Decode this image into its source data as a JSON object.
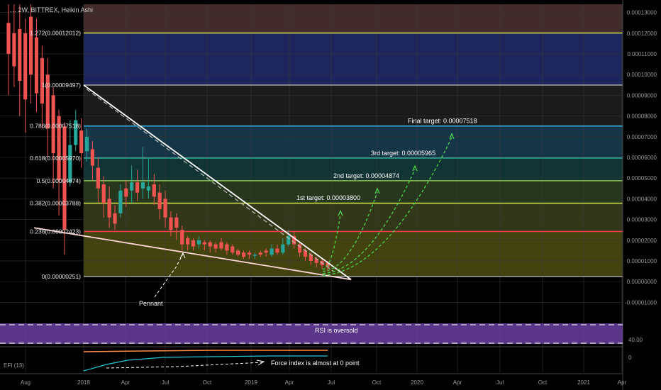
{
  "header": {
    "title": "… 2W, BITTREX, Heikin Ashi"
  },
  "price_axis": {
    "labels": [
      "0.00013000",
      "0.00012000",
      "0.00011000",
      "0.00010000",
      "0.00009000",
      "0.00008000",
      "0.00007000",
      "0.00006000",
      "0.00005000",
      "0.00004000",
      "0.00003000",
      "0.00002000",
      "0.00001000",
      "0.00000000",
      "-0.00001000"
    ]
  },
  "time_axis": {
    "labels": [
      "Aug",
      "2018",
      "Apr",
      "Jul",
      "Oct",
      "2019",
      "Apr",
      "Jul",
      "Oct",
      "2020",
      "Apr",
      "Jul",
      "Oct",
      "2021",
      "Apr"
    ]
  },
  "fib_levels": [
    {
      "label": "1.272(0.00012012)",
      "value": 0.00012012,
      "color": "#c6d94b"
    },
    {
      "label": "1(0.00009497)",
      "value": 9.497e-05,
      "color": "#9e9e9e"
    },
    {
      "label": "0.786(0.00007518)",
      "value": 7.518e-05,
      "color": "#3fa7d6"
    },
    {
      "label": "0.618(0.00005970)",
      "value": 5.97e-05,
      "color": "#39b7a3"
    },
    {
      "label": "0.5(0.00004874)",
      "value": 4.874e-05,
      "color": "#8bc34a"
    },
    {
      "label": "0.382(0.00003788)",
      "value": 3.788e-05,
      "color": "#c6d94b"
    },
    {
      "label": "0.236(0.00002423)",
      "value": 2.423e-05,
      "color": "#e0454a"
    },
    {
      "label": "0(0.00000251)",
      "value": 2.51e-06,
      "color": "#9e9e9e"
    }
  ],
  "targets": [
    {
      "label": "1st target: 0.00003800",
      "value": 3.8e-05
    },
    {
      "label": "2nd target: 0.00004874",
      "value": 4.874e-05
    },
    {
      "label": "3rd target: 0.00005965",
      "value": 5.965e-05
    },
    {
      "label": "Final target: 0.00007518",
      "value": 7.518e-05
    }
  ],
  "annotations": {
    "pennant": "Pennant",
    "rsi": "RSI is oversold",
    "efi": "Force index is almost at 0 point",
    "efi_label": "EFI (13)"
  },
  "rsi_axis": {
    "labels": [
      "40.00",
      "0"
    ]
  },
  "colors": {
    "up": "#26a69a",
    "down": "#ef5350",
    "rsi_band": "#6a3fa0",
    "trendline": "#ffffff",
    "target_arrow": "#4cd44c"
  },
  "chart_data": {
    "type": "candlestick",
    "series_kind": "Heikin Ashi",
    "interval": "2W",
    "exchange": "BITTREX",
    "ylim": [
      -1.4e-05,
      0.000134
    ],
    "candles": [
      {
        "o": 0.000125,
        "c": 0.00011,
        "h": 0.000134,
        "l": 9e-05
      },
      {
        "o": 0.00012,
        "c": 0.000104,
        "h": 0.000134,
        "l": 9.4e-05
      },
      {
        "o": 0.000122,
        "c": 9.7e-05,
        "h": 0.000134,
        "l": 8e-05
      },
      {
        "o": 0.00012,
        "c": 8.8e-05,
        "h": 0.000127,
        "l": 7.2e-05
      },
      {
        "o": 0.000128,
        "c": 0.0001,
        "h": 0.000134,
        "l": 8.6e-05
      },
      {
        "o": 0.000118,
        "c": 9.1e-05,
        "h": 0.000127,
        "l": 8.2e-05
      },
      {
        "o": 0.000108,
        "c": 8.6e-05,
        "h": 0.000114,
        "l": 7.4e-05
      },
      {
        "o": 0.0001,
        "c": 7.4e-05,
        "h": 0.000108,
        "l": 6e-05
      },
      {
        "o": 9e-05,
        "c": 6.2e-05,
        "h": 9.4e-05,
        "l": 4.5e-05
      },
      {
        "o": 8e-05,
        "c": 4.9e-05,
        "h": 8.3e-05,
        "l": 3.2e-05
      },
      {
        "o": 7.5e-05,
        "c": 2.5e-05,
        "h": 7.7e-05,
        "l": 1.3e-05
      },
      {
        "o": 4.8e-05,
        "c": 6.6e-05,
        "h": 7.8e-05,
        "l": 4.6e-05
      },
      {
        "o": 6.6e-05,
        "c": 7.8e-05,
        "h": 8.3e-05,
        "l": 6.3e-05
      },
      {
        "o": 7.3e-05,
        "c": 6.2e-05,
        "h": 7.9e-05,
        "l": 5.5e-05
      },
      {
        "o": 6.3e-05,
        "c": 7e-05,
        "h": 7.4e-05,
        "l": 5.8e-05
      },
      {
        "o": 6.4e-05,
        "c": 5.6e-05,
        "h": 6.8e-05,
        "l": 4.9e-05
      },
      {
        "o": 5.5e-05,
        "c": 4.5e-05,
        "h": 6e-05,
        "l": 3.8e-05
      },
      {
        "o": 4.7e-05,
        "c": 3.8e-05,
        "h": 5.1e-05,
        "l": 3.1e-05
      },
      {
        "o": 4e-05,
        "c": 3.1e-05,
        "h": 4.6e-05,
        "l": 2.6e-05
      },
      {
        "o": 3.3e-05,
        "c": 2.8e-05,
        "h": 3.7e-05,
        "l": 2.5e-05
      },
      {
        "o": 3.3e-05,
        "c": 4.4e-05,
        "h": 4.7e-05,
        "l": 3.1e-05
      },
      {
        "o": 4.5e-05,
        "c": 4.1e-05,
        "h": 4.9e-05,
        "l": 3.6e-05
      },
      {
        "o": 4.4e-05,
        "c": 4.8e-05,
        "h": 5.6e-05,
        "l": 3.8e-05
      },
      {
        "o": 4.8e-05,
        "c": 4.3e-05,
        "h": 5.4e-05,
        "l": 3.9e-05
      },
      {
        "o": 4.5e-05,
        "c": 4.8e-05,
        "h": 6.5e-05,
        "l": 4e-05
      },
      {
        "o": 4.4e-05,
        "c": 4.6e-05,
        "h": 6e-05,
        "l": 4e-05
      },
      {
        "o": 4.7e-05,
        "c": 4.1e-05,
        "h": 5.2e-05,
        "l": 3.7e-05
      },
      {
        "o": 4.3e-05,
        "c": 3.5e-05,
        "h": 4.7e-05,
        "l": 3e-05
      },
      {
        "o": 4e-05,
        "c": 3.1e-05,
        "h": 4.4e-05,
        "l": 2.6e-05
      },
      {
        "o": 3.1e-05,
        "c": 2.5e-05,
        "h": 3.4e-05,
        "l": 2.2e-05
      },
      {
        "o": 3.1e-05,
        "c": 2.6e-05,
        "h": 3.3e-05,
        "l": 2e-05
      },
      {
        "o": 2.5e-05,
        "c": 1.8e-05,
        "h": 2.7e-05,
        "l": 1.5e-05
      },
      {
        "o": 2.1e-05,
        "c": 1.8e-05,
        "h": 2.2e-05,
        "l": 1.5e-05
      },
      {
        "o": 2e-05,
        "c": 1.7e-05,
        "h": 2.1e-05,
        "l": 1.5e-05
      },
      {
        "o": 1.8e-05,
        "c": 2e-05,
        "h": 2.2e-05,
        "l": 1.6e-05
      },
      {
        "o": 1.9e-05,
        "c": 1.8e-05,
        "h": 2e-05,
        "l": 1.5e-05
      },
      {
        "o": 1.9e-05,
        "c": 1.7e-05,
        "h": 2e-05,
        "l": 1.4e-05
      },
      {
        "o": 1.8e-05,
        "c": 1.6e-05,
        "h": 1.9e-05,
        "l": 1.4e-05
      },
      {
        "o": 1.9e-05,
        "c": 1.6e-05,
        "h": 2.1e-05,
        "l": 1.5e-05
      },
      {
        "o": 1.8e-05,
        "c": 1.5e-05,
        "h": 1.9e-05,
        "l": 1.3e-05
      },
      {
        "o": 1.7e-05,
        "c": 1.4e-05,
        "h": 1.8e-05,
        "l": 1.3e-05
      },
      {
        "o": 1.5e-05,
        "c": 1.3e-05,
        "h": 1.6e-05,
        "l": 1.2e-05
      },
      {
        "o": 1.4e-05,
        "c": 1.2e-05,
        "h": 1.5e-05,
        "l": 1.1e-05
      },
      {
        "o": 1.4e-05,
        "c": 1.3e-05,
        "h": 1.5e-05,
        "l": 1.1e-05
      },
      {
        "o": 1.3e-05,
        "c": 1.3e-05,
        "h": 1.4e-05,
        "l": 1.1e-05
      },
      {
        "o": 1.4e-05,
        "c": 1.3e-05,
        "h": 1.5e-05,
        "l": 1.2e-05
      },
      {
        "o": 1.5e-05,
        "c": 1.4e-05,
        "h": 1.6e-05,
        "l": 1.2e-05
      },
      {
        "o": 1.3e-05,
        "c": 1.6e-05,
        "h": 1.8e-05,
        "l": 1.2e-05
      },
      {
        "o": 1.6e-05,
        "c": 1.4e-05,
        "h": 1.8e-05,
        "l": 1.3e-05
      },
      {
        "o": 1.4e-05,
        "c": 1.8e-05,
        "h": 2.1e-05,
        "l": 1.3e-05
      },
      {
        "o": 1.8e-05,
        "c": 2.2e-05,
        "h": 2.5e-05,
        "l": 1.7e-05
      },
      {
        "o": 2.2e-05,
        "c": 1.8e-05,
        "h": 2.4e-05,
        "l": 1.6e-05
      },
      {
        "o": 1.8e-05,
        "c": 1.4e-05,
        "h": 1.9e-05,
        "l": 1.2e-05
      },
      {
        "o": 1.5e-05,
        "c": 1.2e-05,
        "h": 1.6e-05,
        "l": 1e-05
      },
      {
        "o": 1.3e-05,
        "c": 1e-05,
        "h": 1.4e-05,
        "l": 8e-06
      },
      {
        "o": 1.1e-05,
        "c": 9e-06,
        "h": 1.2e-05,
        "l": 7e-06
      },
      {
        "o": 1e-05,
        "c": 8e-06,
        "h": 1.1e-05,
        "l": 6e-06
      },
      {
        "o": 9e-06,
        "c": 7e-06,
        "h": 1e-05,
        "l": 5e-06
      }
    ]
  }
}
